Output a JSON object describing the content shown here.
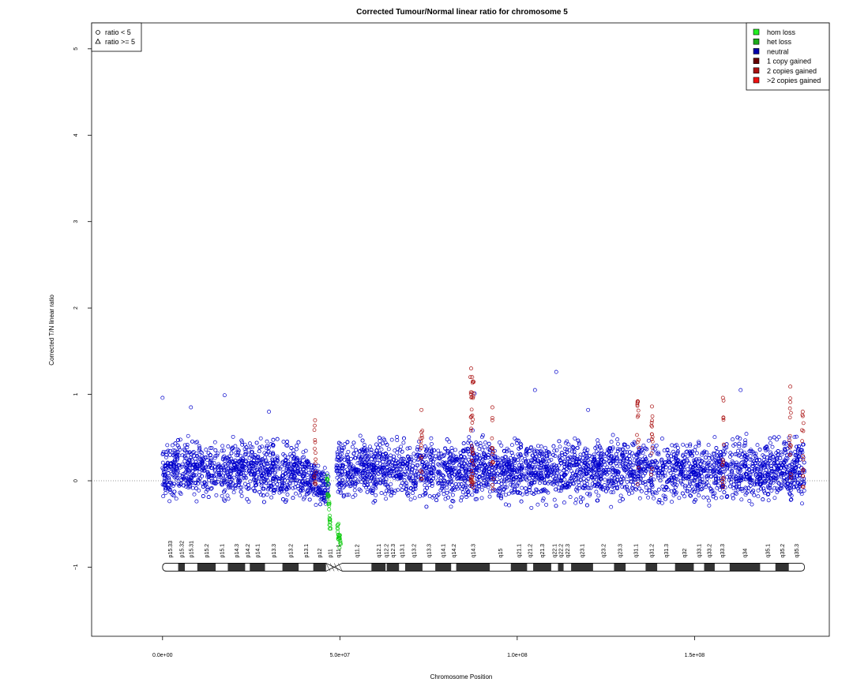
{
  "chart_data": {
    "type": "scatter",
    "title": "Corrected Tumour/Normal linear ratio for chromosome  5",
    "xlabel": "Chromosome Position",
    "ylabel": "Corrected T/N linear ratio",
    "xlim": [
      -20000000,
      188000000
    ],
    "ylim": [
      -1.8,
      5.3
    ],
    "x_ticks": [
      0,
      50000000,
      100000000,
      150000000
    ],
    "x_tick_labels": [
      "0.0e+00",
      "5.0e+07",
      "1.0e+08",
      "1.5e+08"
    ],
    "y_ticks": [
      -1,
      0,
      1,
      2,
      3,
      4,
      5
    ],
    "y_tick_labels": [
      "−1",
      "0",
      "1",
      "2",
      "3",
      "4",
      "5"
    ],
    "reference_line_y": 0,
    "shape_legend": {
      "placement": "top-left",
      "entries": [
        {
          "label": "ratio < 5",
          "shape": "circle"
        },
        {
          "label": "ratio >= 5",
          "shape": "triangle"
        }
      ]
    },
    "state_legend": {
      "placement": "top-right",
      "entries": [
        {
          "label": "hom loss",
          "color": "#22ee22"
        },
        {
          "label": "het loss",
          "color": "#1aaa1a"
        },
        {
          "label": "neutral",
          "color": "#0000aa"
        },
        {
          "label": "1 copy gained",
          "color": "#660000"
        },
        {
          "label": "2 copies gained",
          "color": "#aa1111"
        },
        {
          "label": ">2 copies gained",
          "color": "#ee1111"
        }
      ]
    },
    "series": [
      {
        "state": "neutral",
        "color": "#0000cc",
        "note_approx": "dense band of points across the chromosome",
        "band": [
          {
            "x": 0,
            "low": -0.35,
            "high": 0.55
          },
          {
            "x": 20000000,
            "low": -0.35,
            "high": 0.6
          },
          {
            "x": 40000000,
            "low": -0.35,
            "high": 0.55
          },
          {
            "x": 46000000,
            "low": -0.35,
            "high": 0.2
          },
          {
            "x": 49500000,
            "low": -0.3,
            "high": 0.6
          },
          {
            "x": 70000000,
            "low": -0.35,
            "high": 0.6
          },
          {
            "x": 100000000,
            "low": -0.35,
            "high": 0.6
          },
          {
            "x": 130000000,
            "low": -0.35,
            "high": 0.6
          },
          {
            "x": 160000000,
            "low": -0.35,
            "high": 0.6
          },
          {
            "x": 181000000,
            "low": -0.35,
            "high": 0.6
          }
        ],
        "outliers": [
          {
            "x": 0,
            "y": 0.96
          },
          {
            "x": 17500000,
            "y": 0.99
          },
          {
            "x": 88000000,
            "y": 1.01
          },
          {
            "x": 111000000,
            "y": 1.26
          },
          {
            "x": 105000000,
            "y": 1.05
          },
          {
            "x": 163000000,
            "y": 1.05
          },
          {
            "x": 8000000,
            "y": 0.85
          },
          {
            "x": 120000000,
            "y": 0.82
          },
          {
            "x": 30000000,
            "y": 0.8
          }
        ]
      },
      {
        "state": "het loss",
        "color": "#11cc11",
        "note_approx": "dip near centromere",
        "points": [
          {
            "x": 46500000,
            "y": 0.0
          },
          {
            "x": 46700000,
            "y": -0.15
          },
          {
            "x": 46900000,
            "y": -0.3
          },
          {
            "x": 47100000,
            "y": -0.45
          },
          {
            "x": 47300000,
            "y": -0.5
          },
          {
            "x": 49500000,
            "y": -0.55
          },
          {
            "x": 49700000,
            "y": -0.62
          },
          {
            "x": 49900000,
            "y": -0.68
          },
          {
            "x": 50100000,
            "y": -0.72
          }
        ]
      },
      {
        "state": "2 copies gained",
        "color": "#aa1111",
        "points": [
          {
            "x": 43000000,
            "y": 0.7
          },
          {
            "x": 73000000,
            "y": 0.82
          },
          {
            "x": 87000000,
            "y": 1.3
          },
          {
            "x": 87300000,
            "y": 1.2
          },
          {
            "x": 87500000,
            "y": 1.15
          },
          {
            "x": 93000000,
            "y": 0.85
          },
          {
            "x": 134000000,
            "y": 0.92
          },
          {
            "x": 138000000,
            "y": 0.86
          },
          {
            "x": 158000000,
            "y": 0.96
          },
          {
            "x": 177000000,
            "y": 1.09
          },
          {
            "x": 180500000,
            "y": 0.8
          }
        ]
      }
    ],
    "ideogram": {
      "chromosome_length": 181000000,
      "centromere_start": 46500000,
      "centromere_end": 50500000,
      "bands": [
        {
          "name": "p15.33",
          "start": 0,
          "end": 4400000,
          "stain": "gneg"
        },
        {
          "name": "p15.32",
          "start": 4400000,
          "end": 6300000,
          "stain": "gpos"
        },
        {
          "name": "p15.31",
          "start": 6300000,
          "end": 9800000,
          "stain": "gneg"
        },
        {
          "name": "p15.2",
          "start": 9800000,
          "end": 15000000,
          "stain": "gpos"
        },
        {
          "name": "p15.1",
          "start": 15000000,
          "end": 18400000,
          "stain": "gneg"
        },
        {
          "name": "p14.3",
          "start": 18400000,
          "end": 23300000,
          "stain": "gpos"
        },
        {
          "name": "p14.2",
          "start": 23300000,
          "end": 24600000,
          "stain": "gneg"
        },
        {
          "name": "p14.1",
          "start": 24600000,
          "end": 28900000,
          "stain": "gpos"
        },
        {
          "name": "p13.3",
          "start": 28900000,
          "end": 33800000,
          "stain": "gneg"
        },
        {
          "name": "p13.2",
          "start": 33800000,
          "end": 38400000,
          "stain": "gpos"
        },
        {
          "name": "p13.1",
          "start": 38400000,
          "end": 42500000,
          "stain": "gneg"
        },
        {
          "name": "p12",
          "start": 42500000,
          "end": 46100000,
          "stain": "gpos"
        },
        {
          "name": "p11",
          "start": 46100000,
          "end": 48400000,
          "stain": "acen"
        },
        {
          "name": "q11.1",
          "start": 48400000,
          "end": 50700000,
          "stain": "acen"
        },
        {
          "name": "q11.2",
          "start": 50700000,
          "end": 58900000,
          "stain": "gneg"
        },
        {
          "name": "q12.1",
          "start": 58900000,
          "end": 62900000,
          "stain": "gpos"
        },
        {
          "name": "q12.2",
          "start": 62900000,
          "end": 63200000,
          "stain": "gneg"
        },
        {
          "name": "q12.3",
          "start": 63200000,
          "end": 66700000,
          "stain": "gpos"
        },
        {
          "name": "q13.1",
          "start": 66700000,
          "end": 68400000,
          "stain": "gneg"
        },
        {
          "name": "q13.2",
          "start": 68400000,
          "end": 73300000,
          "stain": "gpos"
        },
        {
          "name": "q13.3",
          "start": 73300000,
          "end": 76900000,
          "stain": "gneg"
        },
        {
          "name": "q14.1",
          "start": 76900000,
          "end": 81400000,
          "stain": "gpos"
        },
        {
          "name": "q14.2",
          "start": 81400000,
          "end": 82800000,
          "stain": "gneg"
        },
        {
          "name": "q14.3",
          "start": 82800000,
          "end": 92300000,
          "stain": "gpos"
        },
        {
          "name": "q15",
          "start": 92300000,
          "end": 98200000,
          "stain": "gneg"
        },
        {
          "name": "q21.1",
          "start": 98200000,
          "end": 102800000,
          "stain": "gpos"
        },
        {
          "name": "q21.2",
          "start": 102800000,
          "end": 104500000,
          "stain": "gneg"
        },
        {
          "name": "q21.3",
          "start": 104500000,
          "end": 109600000,
          "stain": "gpos"
        },
        {
          "name": "q22.1",
          "start": 109600000,
          "end": 111500000,
          "stain": "gneg"
        },
        {
          "name": "q22.2",
          "start": 111500000,
          "end": 113100000,
          "stain": "gpos"
        },
        {
          "name": "q22.3",
          "start": 113100000,
          "end": 115200000,
          "stain": "gneg"
        },
        {
          "name": "q23.1",
          "start": 115200000,
          "end": 121400000,
          "stain": "gpos"
        },
        {
          "name": "q23.2",
          "start": 121400000,
          "end": 127300000,
          "stain": "gneg"
        },
        {
          "name": "q23.3",
          "start": 127300000,
          "end": 130600000,
          "stain": "gpos"
        },
        {
          "name": "q31.1",
          "start": 130600000,
          "end": 136200000,
          "stain": "gneg"
        },
        {
          "name": "q31.2",
          "start": 136200000,
          "end": 139500000,
          "stain": "gpos"
        },
        {
          "name": "q31.3",
          "start": 139500000,
          "end": 144500000,
          "stain": "gneg"
        },
        {
          "name": "q32",
          "start": 144500000,
          "end": 149800000,
          "stain": "gpos"
        },
        {
          "name": "q33.1",
          "start": 149800000,
          "end": 152700000,
          "stain": "gneg"
        },
        {
          "name": "q33.2",
          "start": 152700000,
          "end": 155700000,
          "stain": "gpos"
        },
        {
          "name": "q33.3",
          "start": 155700000,
          "end": 159900000,
          "stain": "gneg"
        },
        {
          "name": "q34",
          "start": 159900000,
          "end": 168500000,
          "stain": "gpos"
        },
        {
          "name": "q35.1",
          "start": 168500000,
          "end": 172800000,
          "stain": "gneg"
        },
        {
          "name": "q35.2",
          "start": 172800000,
          "end": 176600000,
          "stain": "gpos"
        },
        {
          "name": "q35.3",
          "start": 176600000,
          "end": 181000000,
          "stain": "gneg"
        }
      ]
    }
  }
}
